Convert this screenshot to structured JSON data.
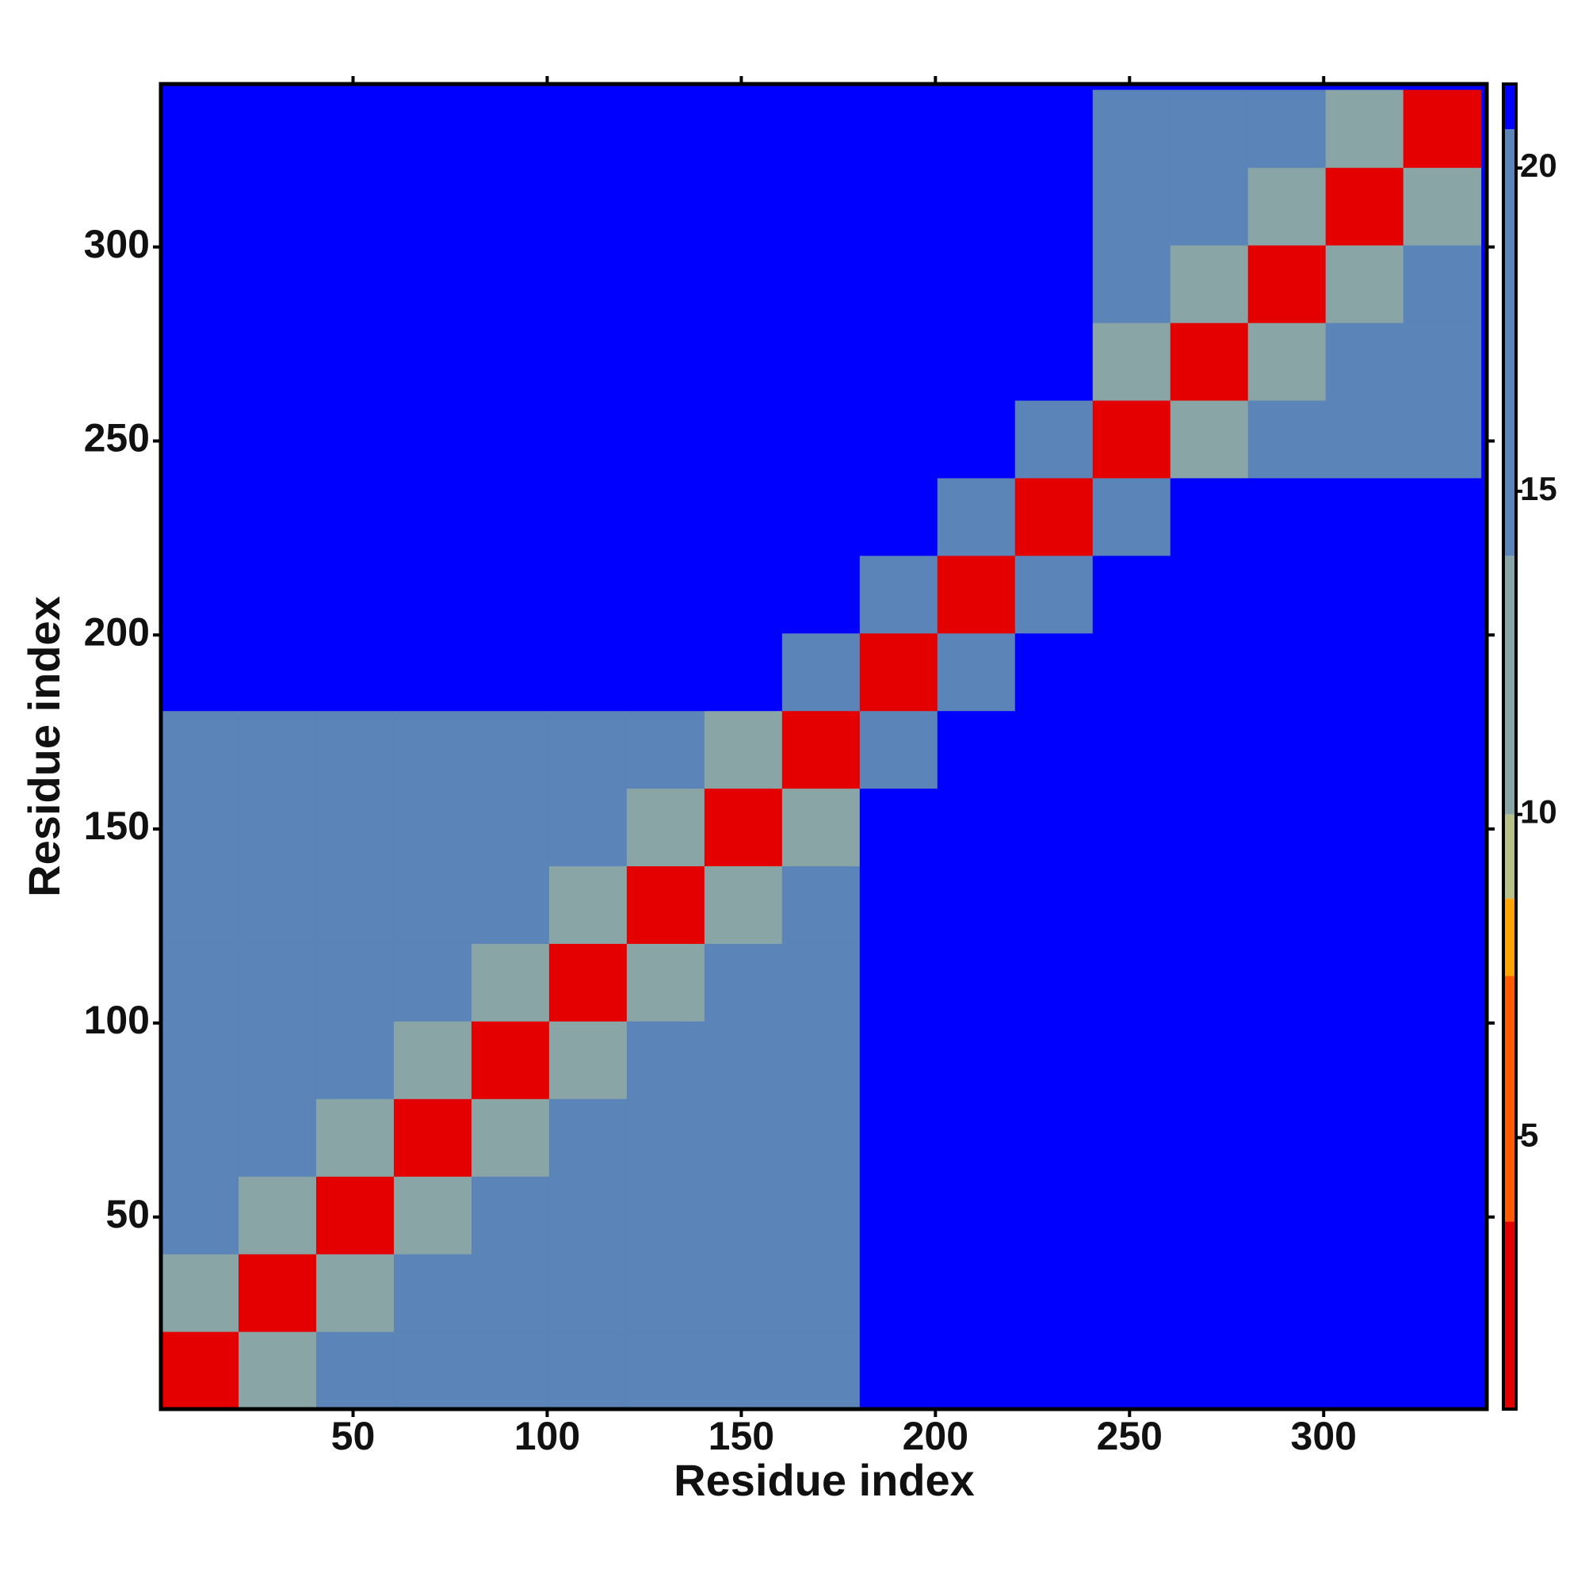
{
  "chart_data": {
    "type": "heatmap",
    "xlabel": "Residue index",
    "ylabel": "Residue index",
    "x": [
      10.5,
      30.5,
      50.5,
      70.5,
      90.5,
      110.5,
      130.5,
      150.5,
      170.5,
      190.5,
      210.5,
      230.5,
      250.5,
      270.5,
      290.5,
      310.5,
      330.5
    ],
    "y": [
      10.5,
      30.5,
      50.5,
      70.5,
      90.5,
      110.5,
      130.5,
      150.5,
      170.5,
      190.5,
      210.5,
      230.5,
      250.5,
      270.5,
      290.5,
      310.5,
      330.5
    ],
    "z": [
      [
        3,
        13,
        18,
        18,
        18,
        18,
        18,
        18,
        18,
        21,
        21,
        21,
        21,
        21,
        21,
        21,
        21
      ],
      [
        13,
        3,
        13,
        18,
        18,
        18,
        18,
        18,
        18,
        21,
        21,
        21,
        21,
        21,
        21,
        21,
        21
      ],
      [
        18,
        13,
        3,
        13,
        18,
        18,
        18,
        18,
        18,
        21,
        21,
        21,
        21,
        21,
        21,
        21,
        21
      ],
      [
        18,
        18,
        13,
        3,
        13,
        18,
        18,
        18,
        18,
        21,
        21,
        21,
        21,
        21,
        21,
        21,
        21
      ],
      [
        18,
        18,
        18,
        13,
        3,
        13,
        18,
        18,
        18,
        21,
        21,
        21,
        21,
        21,
        21,
        21,
        21
      ],
      [
        18,
        18,
        18,
        18,
        13,
        3,
        13,
        18,
        18,
        21,
        21,
        21,
        21,
        21,
        21,
        21,
        21
      ],
      [
        18,
        18,
        18,
        18,
        18,
        13,
        3,
        13,
        18,
        21,
        21,
        21,
        21,
        21,
        21,
        21,
        21
      ],
      [
        18,
        18,
        18,
        18,
        18,
        18,
        13,
        3,
        13,
        21,
        21,
        21,
        21,
        21,
        21,
        21,
        21
      ],
      [
        18,
        18,
        18,
        18,
        18,
        18,
        18,
        13,
        3,
        19,
        21,
        21,
        21,
        21,
        21,
        21,
        21
      ],
      [
        21,
        21,
        21,
        21,
        21,
        21,
        21,
        21,
        19,
        3,
        19,
        21,
        21,
        21,
        21,
        21,
        21
      ],
      [
        21,
        21,
        21,
        21,
        21,
        21,
        21,
        21,
        21,
        19,
        3,
        19,
        21,
        21,
        21,
        21,
        21
      ],
      [
        21,
        21,
        21,
        21,
        21,
        21,
        21,
        21,
        21,
        21,
        19,
        3,
        19,
        21,
        21,
        21,
        21
      ],
      [
        21,
        21,
        21,
        21,
        21,
        21,
        21,
        21,
        21,
        21,
        21,
        19,
        3,
        13,
        18,
        18,
        18
      ],
      [
        21,
        21,
        21,
        21,
        21,
        21,
        21,
        21,
        21,
        21,
        21,
        21,
        13,
        3,
        13,
        18,
        18
      ],
      [
        21,
        21,
        21,
        21,
        21,
        21,
        21,
        21,
        21,
        21,
        21,
        21,
        18,
        13,
        3,
        13,
        18
      ],
      [
        21,
        21,
        21,
        21,
        21,
        21,
        21,
        21,
        21,
        21,
        21,
        21,
        18,
        18,
        13,
        3,
        13
      ],
      [
        21,
        21,
        21,
        21,
        21,
        21,
        21,
        21,
        21,
        21,
        21,
        21,
        18,
        18,
        18,
        13,
        3
      ]
    ],
    "xlim": [
      0.5,
      342
    ],
    "ylim": [
      0.5,
      342
    ],
    "xticks": [
      50,
      100,
      150,
      200,
      250,
      300
    ],
    "yticks": [
      50,
      100,
      150,
      200,
      250,
      300
    ],
    "clim": [
      0.8,
      21.3
    ],
    "cticks": [
      5,
      10,
      15,
      20
    ],
    "colorscale": [
      {
        "max": 3.7,
        "color": "#e50000"
      },
      {
        "max": 7.5,
        "color": "#ff5a00"
      },
      {
        "max": 8.7,
        "color": "#ffa500"
      },
      {
        "max": 10,
        "color": "#b8c08a"
      },
      {
        "max": 14,
        "color": "#8aa5a6"
      },
      {
        "max": 20.6,
        "color": "#5b84b8"
      },
      {
        "max": 21.3,
        "color": "#0000ff"
      }
    ]
  }
}
